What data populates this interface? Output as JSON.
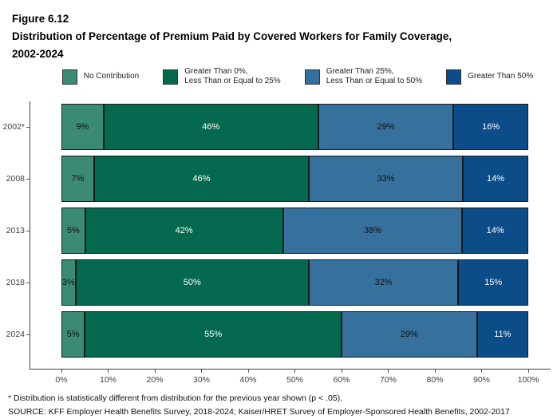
{
  "header": {
    "figure_label": "Figure 6.12",
    "title_line1": "Distribution of Percentage of Premium Paid by Covered Workers for Family Coverage,",
    "title_line2": "2002-2024"
  },
  "chart_data": {
    "type": "bar",
    "variant": "horizontal-stacked",
    "title": "Figure 6.12 Distribution of Percentage of Premium Paid by Covered Workers for Family Coverage, 2002-2024",
    "categories": [
      "2002*",
      "2008",
      "2013",
      "2018",
      "2024"
    ],
    "series": [
      {
        "name": "No Contribution",
        "legend_label": "No Contribution",
        "color": "#3B8A73",
        "label_color": "#111111",
        "values": [
          9,
          7,
          5,
          3,
          5
        ]
      },
      {
        "name": "Greater Than 0%, Less Than or Equal to 25%",
        "legend_label": "Greater Than 0%,\nLess Than or Equal to 25%",
        "color": "#04694F",
        "label_color": "#FFFFFF",
        "values": [
          46,
          46,
          42,
          50,
          55
        ]
      },
      {
        "name": "Greater Than 25%, Less Than or Equal to 50%",
        "legend_label": "Greater Than 25%,\nLess Than or Equal to 50%",
        "color": "#36709D",
        "label_color": "#111111",
        "values": [
          29,
          33,
          38,
          32,
          29
        ]
      },
      {
        "name": "Greater Than 50%",
        "legend_label": "Greater Than 50%",
        "color": "#0C4C88",
        "label_color": "#FFFFFF",
        "values": [
          16,
          14,
          14,
          15,
          11
        ]
      }
    ],
    "value_suffix": "%",
    "x_ticks": [
      "0%",
      "10%",
      "20%",
      "30%",
      "40%",
      "50%",
      "60%",
      "70%",
      "80%",
      "90%",
      "100%"
    ],
    "xlim": [
      0,
      100
    ],
    "grid": false,
    "legend_position": "top"
  },
  "footnotes": {
    "note": "* Distribution is statistically different from distribution for the previous year shown (p < .05).",
    "source": "SOURCE: KFF Employer Health Benefits Survey, 2018-2024; Kaiser/HRET Survey of Employer-Sponsored Health Benefits, 2002-2017"
  }
}
